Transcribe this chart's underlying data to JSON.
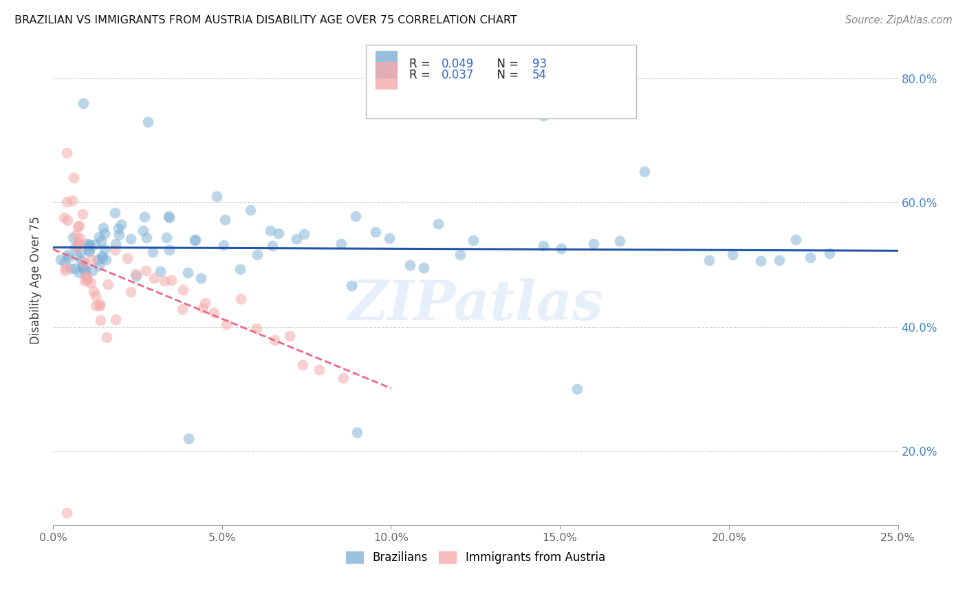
{
  "title": "BRAZILIAN VS IMMIGRANTS FROM AUSTRIA DISABILITY AGE OVER 75 CORRELATION CHART",
  "source": "Source: ZipAtlas.com",
  "ylabel_label": "Disability Age Over 75",
  "legend_blue_label": "Brazilians",
  "legend_pink_label": "Immigrants from Austria",
  "blue_color": "#7BAFD4",
  "pink_color": "#F4AAAA",
  "trendline_blue_color": "#2255AA",
  "trendline_pink_color": "#EE6688",
  "watermark": "ZIPatlas",
  "xmin": 0.0,
  "xmax": 0.25,
  "ymin": 0.08,
  "ymax": 0.87,
  "yticks": [
    0.2,
    0.4,
    0.6,
    0.8
  ],
  "ytick_labels": [
    "20.0%",
    "40.0%",
    "60.0%",
    "80.0%"
  ],
  "xticks": [
    0.0,
    0.05,
    0.1,
    0.15,
    0.2,
    0.25
  ],
  "xtick_labels": [
    "0.0%",
    "5.0%",
    "10.0%",
    "15.0%",
    "20.0%",
    "25.0%"
  ],
  "blue_x": [
    0.003,
    0.004,
    0.005,
    0.005,
    0.005,
    0.006,
    0.006,
    0.007,
    0.007,
    0.007,
    0.008,
    0.008,
    0.008,
    0.009,
    0.009,
    0.009,
    0.01,
    0.01,
    0.01,
    0.01,
    0.011,
    0.011,
    0.011,
    0.012,
    0.012,
    0.012,
    0.013,
    0.013,
    0.014,
    0.014,
    0.015,
    0.015,
    0.016,
    0.016,
    0.017,
    0.017,
    0.018,
    0.019,
    0.02,
    0.02,
    0.021,
    0.022,
    0.023,
    0.025,
    0.026,
    0.027,
    0.028,
    0.03,
    0.032,
    0.033,
    0.035,
    0.036,
    0.038,
    0.04,
    0.042,
    0.043,
    0.045,
    0.047,
    0.05,
    0.052,
    0.055,
    0.058,
    0.06,
    0.062,
    0.065,
    0.068,
    0.072,
    0.075,
    0.08,
    0.085,
    0.088,
    0.09,
    0.095,
    0.1,
    0.105,
    0.11,
    0.115,
    0.12,
    0.125,
    0.13,
    0.14,
    0.15,
    0.155,
    0.16,
    0.17,
    0.175,
    0.195,
    0.2,
    0.21,
    0.215,
    0.22,
    0.225,
    0.23
  ],
  "blue_y": [
    0.5,
    0.51,
    0.5,
    0.52,
    0.51,
    0.5,
    0.51,
    0.76,
    0.51,
    0.5,
    0.52,
    0.51,
    0.5,
    0.51,
    0.52,
    0.5,
    0.51,
    0.5,
    0.52,
    0.51,
    0.55,
    0.51,
    0.5,
    0.54,
    0.52,
    0.51,
    0.63,
    0.52,
    0.51,
    0.5,
    0.53,
    0.52,
    0.55,
    0.51,
    0.56,
    0.52,
    0.58,
    0.51,
    0.56,
    0.52,
    0.57,
    0.55,
    0.48,
    0.57,
    0.55,
    0.52,
    0.5,
    0.48,
    0.55,
    0.58,
    0.55,
    0.52,
    0.48,
    0.5,
    0.55,
    0.52,
    0.48,
    0.57,
    0.52,
    0.57,
    0.5,
    0.57,
    0.52,
    0.57,
    0.52,
    0.55,
    0.52,
    0.55,
    0.55,
    0.52,
    0.5,
    0.55,
    0.52,
    0.55,
    0.52,
    0.52,
    0.55,
    0.52,
    0.55,
    0.52,
    0.55,
    0.52,
    0.35,
    0.52,
    0.52,
    0.64,
    0.52,
    0.52,
    0.52,
    0.52,
    0.52,
    0.52,
    0.52
  ],
  "pink_x": [
    0.003,
    0.004,
    0.004,
    0.005,
    0.005,
    0.005,
    0.006,
    0.006,
    0.006,
    0.007,
    0.007,
    0.007,
    0.008,
    0.008,
    0.008,
    0.009,
    0.009,
    0.009,
    0.01,
    0.01,
    0.01,
    0.011,
    0.011,
    0.012,
    0.012,
    0.013,
    0.013,
    0.014,
    0.014,
    0.015,
    0.016,
    0.017,
    0.018,
    0.02,
    0.022,
    0.025,
    0.027,
    0.03,
    0.032,
    0.035,
    0.038,
    0.04,
    0.043,
    0.045,
    0.048,
    0.05,
    0.055,
    0.06,
    0.065,
    0.07,
    0.075,
    0.08,
    0.085,
    0.006
  ],
  "pink_y": [
    0.68,
    0.5,
    0.51,
    0.63,
    0.61,
    0.61,
    0.59,
    0.58,
    0.58,
    0.56,
    0.55,
    0.55,
    0.53,
    0.52,
    0.51,
    0.5,
    0.5,
    0.49,
    0.48,
    0.48,
    0.47,
    0.47,
    0.46,
    0.45,
    0.44,
    0.44,
    0.43,
    0.43,
    0.42,
    0.42,
    0.47,
    0.48,
    0.46,
    0.46,
    0.46,
    0.48,
    0.47,
    0.46,
    0.45,
    0.45,
    0.44,
    0.46,
    0.44,
    0.43,
    0.43,
    0.42,
    0.41,
    0.4,
    0.39,
    0.37,
    0.36,
    0.34,
    0.33,
    0.1
  ]
}
